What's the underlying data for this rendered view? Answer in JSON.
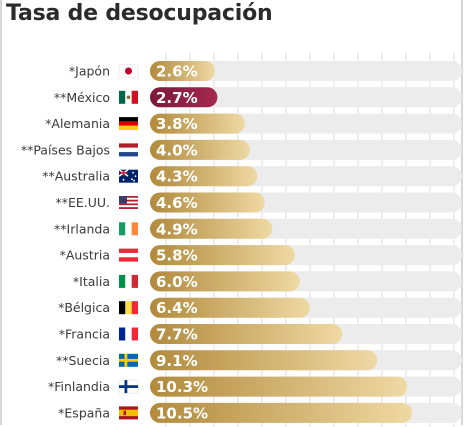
{
  "chart_data": {
    "type": "bar",
    "title": "Tasa de desocupación",
    "categories": [
      "*Japón",
      "**México",
      "*Alemania",
      "**Países Bajos",
      "**Australia",
      "**EE.UU.",
      "**Irlanda",
      "*Austria",
      "*Italia",
      "*Bélgica",
      "*Francia",
      "**Suecia",
      "*Finlandia",
      "*España"
    ],
    "values": [
      2.6,
      2.7,
      3.8,
      4.0,
      4.3,
      4.6,
      4.9,
      5.8,
      6.0,
      6.4,
      7.7,
      9.1,
      10.3,
      10.5
    ],
    "value_labels": [
      "2.6%",
      "2.7%",
      "3.8%",
      "4.0%",
      "4.3%",
      "4.6%",
      "4.9%",
      "5.8%",
      "6.0%",
      "6.4%",
      "7.7%",
      "9.1%",
      "10.3%",
      "10.5%"
    ],
    "flags": [
      "japan",
      "mexico",
      "germany",
      "netherlands",
      "australia",
      "usa",
      "ireland",
      "austria",
      "italy",
      "belgium",
      "france",
      "sweden",
      "finland",
      "spain"
    ],
    "highlight_index": 1,
    "xlim": [
      0,
      12.5
    ],
    "orientation": "horizontal",
    "grid": true,
    "colors": {
      "bar_gradient_start": "#b18a3c",
      "bar_gradient_end": "#efd9a3",
      "highlight_start": "#7a1a3a",
      "highlight_end": "#a5284f",
      "track": "#ececec",
      "grid": "#dcdcdc"
    }
  }
}
